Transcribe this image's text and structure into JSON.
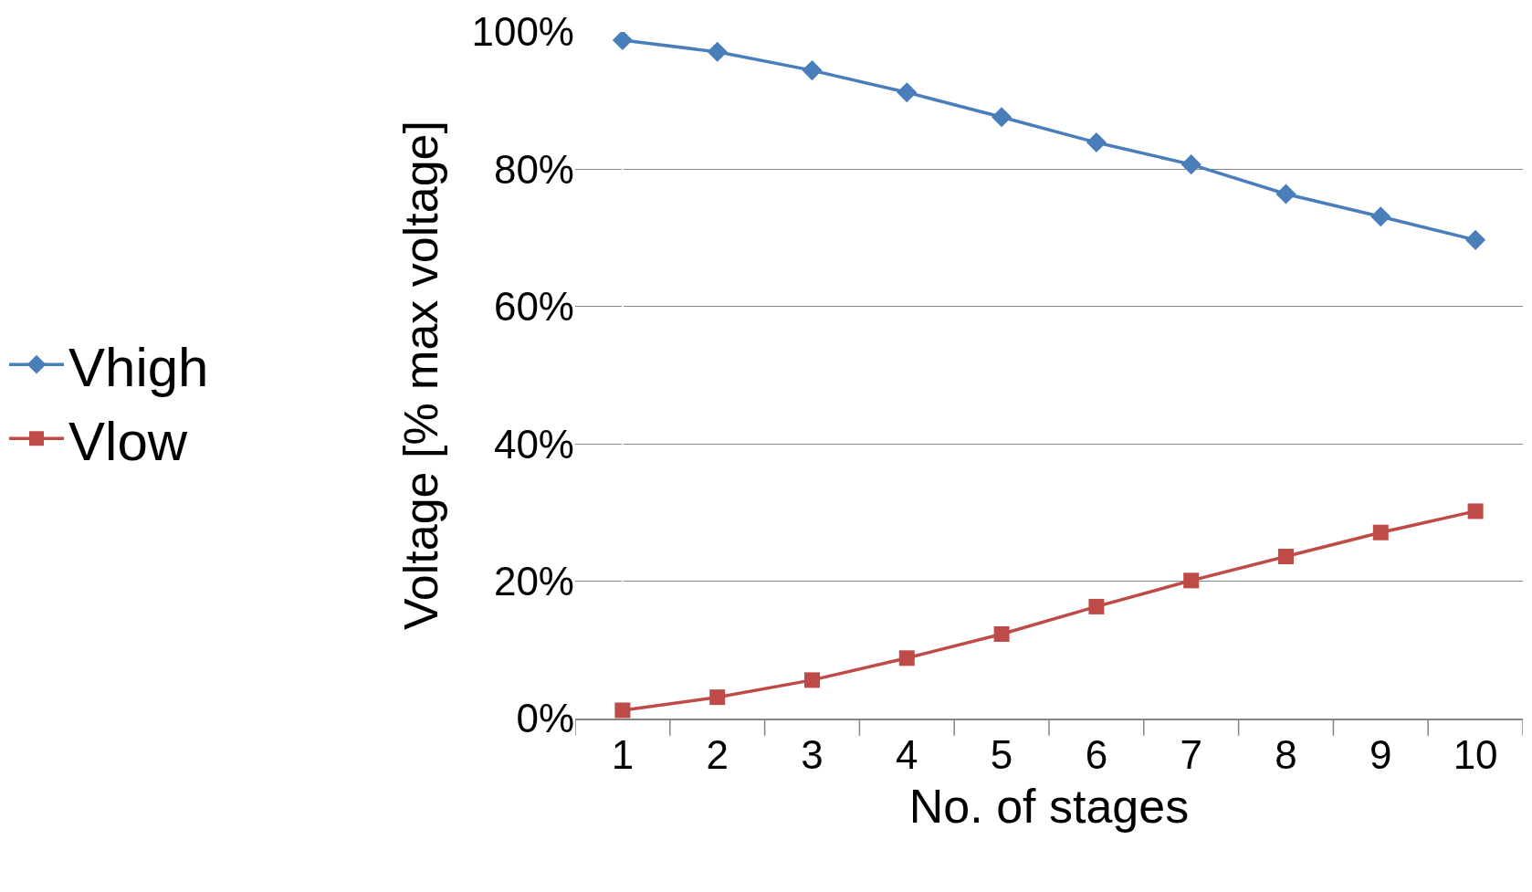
{
  "chart_data": {
    "type": "line",
    "xlabel": "No. of stages",
    "ylabel": "Voltage [% max voltage]",
    "categories": [
      "1",
      "2",
      "3",
      "4",
      "5",
      "6",
      "7",
      "8",
      "9",
      "10"
    ],
    "series": [
      {
        "name": "Vhigh",
        "color": "#4a7ebb",
        "marker": "diamond",
        "values": [
          98.8,
          97.1,
          94.4,
          91.2,
          87.6,
          83.9,
          80.7,
          76.4,
          73.1,
          69.7
        ]
      },
      {
        "name": "Vlow",
        "color": "#be4b48",
        "marker": "square",
        "values": [
          1.2,
          3.1,
          5.6,
          8.8,
          12.3,
          16.3,
          20.1,
          23.6,
          27.1,
          30.2
        ]
      }
    ],
    "ylim": [
      0,
      100
    ],
    "yticks": [
      {
        "value": 0,
        "label": "0%"
      },
      {
        "value": 20,
        "label": "20%"
      },
      {
        "value": 40,
        "label": "40%"
      },
      {
        "value": 60,
        "label": "60%"
      },
      {
        "value": 80,
        "label": "80%"
      },
      {
        "value": 100,
        "label": "100%"
      }
    ],
    "grid": "y",
    "legend": "left",
    "line_style": "solid"
  }
}
